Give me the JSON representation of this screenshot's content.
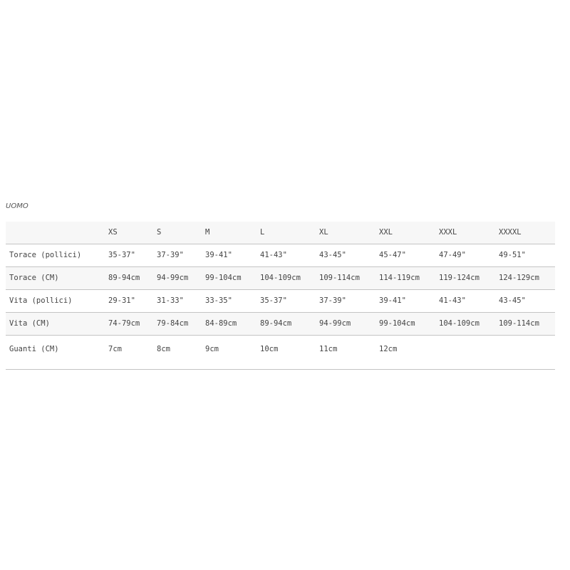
{
  "title": "UOMO",
  "table": {
    "headers": [
      "",
      "XS",
      "S",
      "M",
      "L",
      "XL",
      "XXL",
      "XXXL",
      "XXXXL"
    ],
    "rows": [
      {
        "label": "Torace (pollici)",
        "values": [
          "35-37\"",
          "37-39\"",
          "39-41\"",
          "41-43\"",
          "43-45\"",
          "45-47\"",
          "47-49\"",
          "49-51\""
        ]
      },
      {
        "label": "Torace (CM)",
        "values": [
          "89-94cm",
          "94-99cm",
          "99-104cm",
          "104-109cm",
          "109-114cm",
          "114-119cm",
          "119-124cm",
          "124-129cm"
        ]
      },
      {
        "label": "Vita (pollici)",
        "values": [
          "29-31\"",
          "31-33\"",
          "33-35\"",
          "35-37\"",
          "37-39\"",
          "39-41\"",
          "41-43\"",
          "43-45\""
        ]
      },
      {
        "label": "Vita (CM)",
        "values": [
          "74-79cm",
          "79-84cm",
          "84-89cm",
          "89-94cm",
          "94-99cm",
          "99-104cm",
          "104-109cm",
          "109-114cm"
        ]
      },
      {
        "label": "Guanti (CM)",
        "values": [
          "7cm",
          "8cm",
          "9cm",
          "10cm",
          "11cm",
          "12cm",
          "",
          ""
        ]
      }
    ]
  }
}
